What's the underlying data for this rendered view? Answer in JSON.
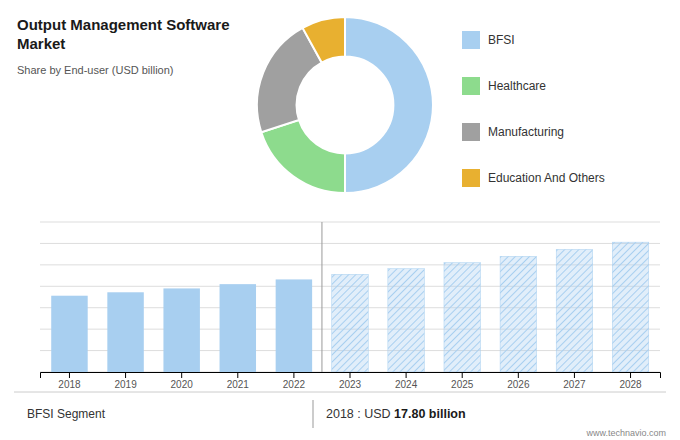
{
  "chart_data": [
    {
      "type": "pie",
      "title": "Output Management Software Market",
      "subtitle": "Share by End-user (USD billion)",
      "categories": [
        "BFSI",
        "Healthcare",
        "Manufacturing",
        "Education And Others"
      ],
      "values": [
        50,
        20,
        22,
        8
      ],
      "colors": [
        "#a8cff0",
        "#8ddb8d",
        "#a0a0a0",
        "#e8b030"
      ]
    },
    {
      "type": "bar",
      "categories": [
        "2018",
        "2019",
        "2020",
        "2021",
        "2022",
        "2023",
        "2024",
        "2025",
        "2026",
        "2027",
        "2028"
      ],
      "series": [
        {
          "color": "#a8cff0",
          "values": [
            17.8,
            18.6,
            19.5,
            20.5,
            21.6,
            null,
            null,
            null,
            null,
            null,
            null
          ]
        },
        {
          "color": "#a8cff0",
          "values": [
            null,
            null,
            null,
            null,
            null,
            22.8,
            24.1,
            25.5,
            27.0,
            28.6,
            30.3
          ]
        }
      ],
      "ylim": [
        0,
        35
      ],
      "yticks": [
        0,
        5,
        10,
        15,
        20,
        25,
        30,
        35
      ],
      "grid": true,
      "tick_labels": "x",
      "annotations": [
        "BFSI Segment",
        "2018 : USD ",
        "17.80 billion",
        "www.technavio.com"
      ]
    }
  ]
}
